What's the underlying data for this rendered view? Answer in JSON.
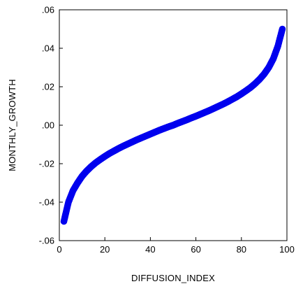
{
  "chart_data": {
    "type": "scatter",
    "title": "",
    "xlabel": "DIFFUSION_INDEX",
    "ylabel": "MONTHLY_GROWTH",
    "xlim": [
      0,
      100
    ],
    "ylim": [
      -0.06,
      0.06
    ],
    "x_ticks": [
      {
        "value": 0,
        "label": "0"
      },
      {
        "value": 20,
        "label": "20"
      },
      {
        "value": 40,
        "label": "40"
      },
      {
        "value": 60,
        "label": "60"
      },
      {
        "value": 80,
        "label": "80"
      },
      {
        "value": 100,
        "label": "100"
      }
    ],
    "y_ticks": [
      {
        "value": -0.06,
        "label": "-.06"
      },
      {
        "value": -0.04,
        "label": "-.04"
      },
      {
        "value": -0.02,
        "label": "-.02"
      },
      {
        "value": 0.0,
        "label": ".00"
      },
      {
        "value": 0.02,
        "label": ".02"
      },
      {
        "value": 0.04,
        "label": ".04"
      },
      {
        "value": 0.06,
        "label": ".06"
      }
    ],
    "grid": false,
    "legend": "none",
    "marker_color": "#0000ee",
    "series": [
      {
        "x": [
          2,
          4,
          6,
          8,
          10,
          12,
          14,
          16,
          18,
          20,
          22,
          24,
          26,
          28,
          30,
          32,
          34,
          36,
          38,
          40,
          42,
          44,
          46,
          48,
          50,
          52,
          54,
          56,
          58,
          60,
          62,
          64,
          66,
          68,
          70,
          72,
          74,
          76,
          78,
          80,
          82,
          84,
          86,
          88,
          90,
          92,
          94,
          96,
          98
        ],
        "y": [
          -0.05,
          -0.04,
          -0.034,
          -0.03,
          -0.0265,
          -0.0238,
          -0.0215,
          -0.0195,
          -0.0178,
          -0.0162,
          -0.0147,
          -0.0134,
          -0.0121,
          -0.0109,
          -0.0098,
          -0.0087,
          -0.0076,
          -0.0066,
          -0.0056,
          -0.0046,
          -0.0036,
          -0.0026,
          -0.0017,
          -0.0008,
          0.0,
          0.001,
          0.0019,
          0.0028,
          0.0038,
          0.0047,
          0.0057,
          0.0067,
          0.0077,
          0.0088,
          0.0099,
          0.011,
          0.0122,
          0.0135,
          0.0148,
          0.0163,
          0.0179,
          0.0196,
          0.0216,
          0.0239,
          0.0266,
          0.03,
          0.0345,
          0.041,
          0.05
        ]
      }
    ]
  }
}
